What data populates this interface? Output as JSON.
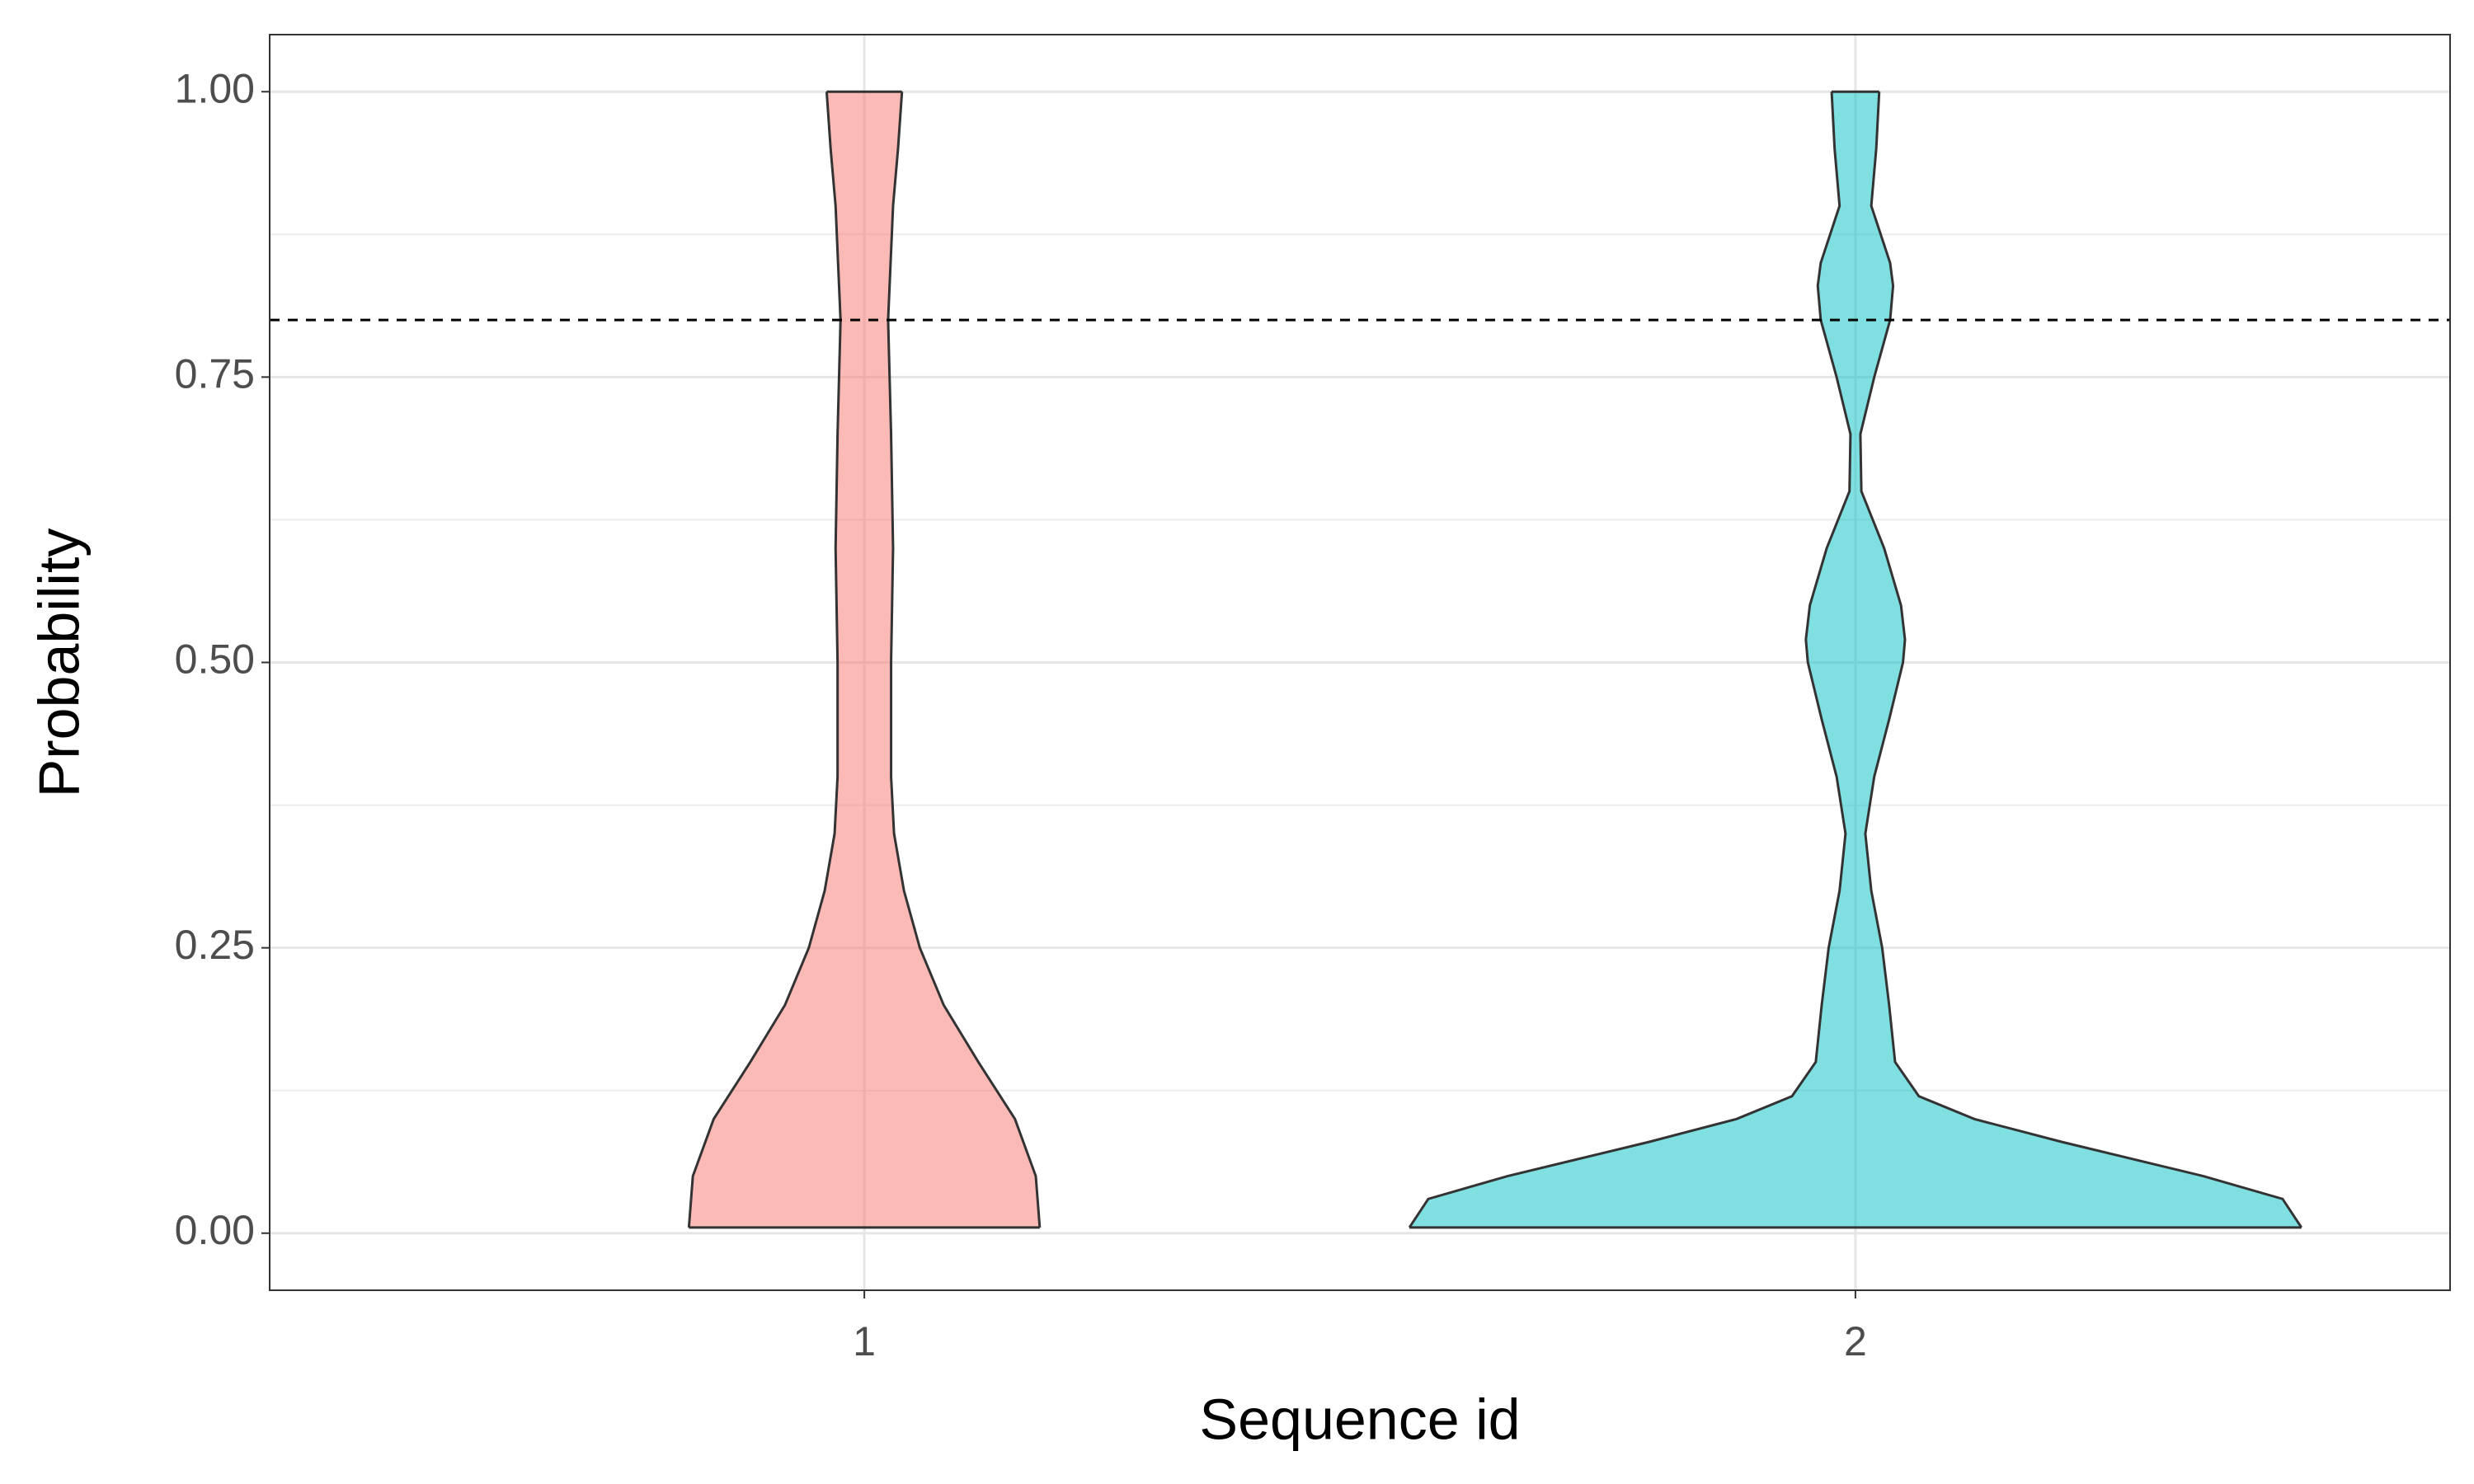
{
  "chart_data": {
    "type": "violin",
    "x_label": "Sequence id",
    "y_label": "Probability",
    "categories": [
      "1",
      "2"
    ],
    "alpha": 0.5,
    "violins": [
      {
        "color": "#F8766D",
        "y": [
          0.005,
          0.05,
          0.1,
          0.15,
          0.2,
          0.25,
          0.3,
          0.35,
          0.4,
          0.5,
          0.6,
          0.7,
          0.8,
          0.9,
          0.95,
          1.0
        ],
        "widths": [
          0.177,
          0.173,
          0.152,
          0.115,
          0.08,
          0.056,
          0.04,
          0.03,
          0.027,
          0.027,
          0.029,
          0.027,
          0.024,
          0.029,
          0.034,
          0.038
        ]
      },
      {
        "color": "#00BFC4",
        "y": [
          0.005,
          0.03,
          0.05,
          0.08,
          0.1,
          0.12,
          0.15,
          0.2,
          0.25,
          0.3,
          0.35,
          0.4,
          0.45,
          0.5,
          0.52,
          0.55,
          0.6,
          0.65,
          0.7,
          0.75,
          0.8,
          0.83,
          0.85,
          0.9,
          0.95,
          1.0
        ],
        "widths": [
          0.45,
          0.431,
          0.351,
          0.208,
          0.12,
          0.064,
          0.04,
          0.034,
          0.027,
          0.016,
          0.01,
          0.019,
          0.034,
          0.048,
          0.05,
          0.046,
          0.029,
          0.006,
          0.005,
          0.019,
          0.035,
          0.038,
          0.035,
          0.016,
          0.021,
          0.024
        ]
      }
    ],
    "hline": 0.8,
    "ylim": [
      -0.05,
      1.05
    ],
    "yticks": [
      {
        "value": 0,
        "label": "0.00"
      },
      {
        "value": 0.25,
        "label": "0.25"
      },
      {
        "value": 0.5,
        "label": "0.50"
      },
      {
        "value": 0.75,
        "label": "0.75"
      },
      {
        "value": 1,
        "label": "1.00"
      }
    ],
    "y_minor_ticks": [
      0.125,
      0.375,
      0.625,
      0.875
    ],
    "grid": true
  }
}
